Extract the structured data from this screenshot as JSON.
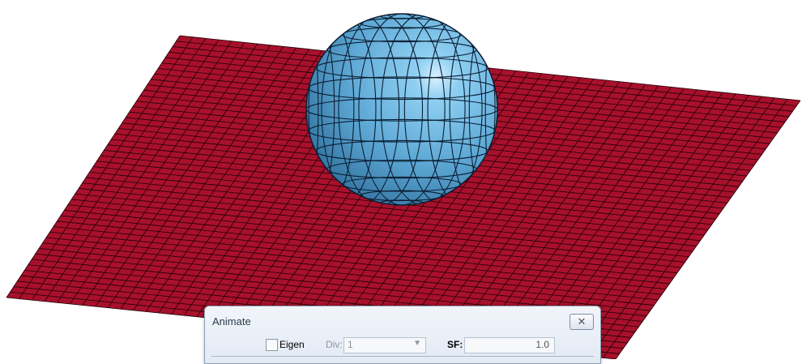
{
  "scene": {
    "plate": {
      "color": "#a8102b",
      "grid_color": "#200008",
      "divisions": 48
    },
    "sphere": {
      "color": "#5fa9d6",
      "highlight_color": "#d9f1ff",
      "mesh_color": "#0b1e33",
      "divisions": 14
    }
  },
  "dialog": {
    "title": "Animate",
    "close_icon": "close-icon",
    "eigen_label": "Eigen",
    "eigen_checked": false,
    "div_label": "Div:",
    "div_value": "1",
    "sf_label": "SF:",
    "sf_value": "1.0"
  }
}
